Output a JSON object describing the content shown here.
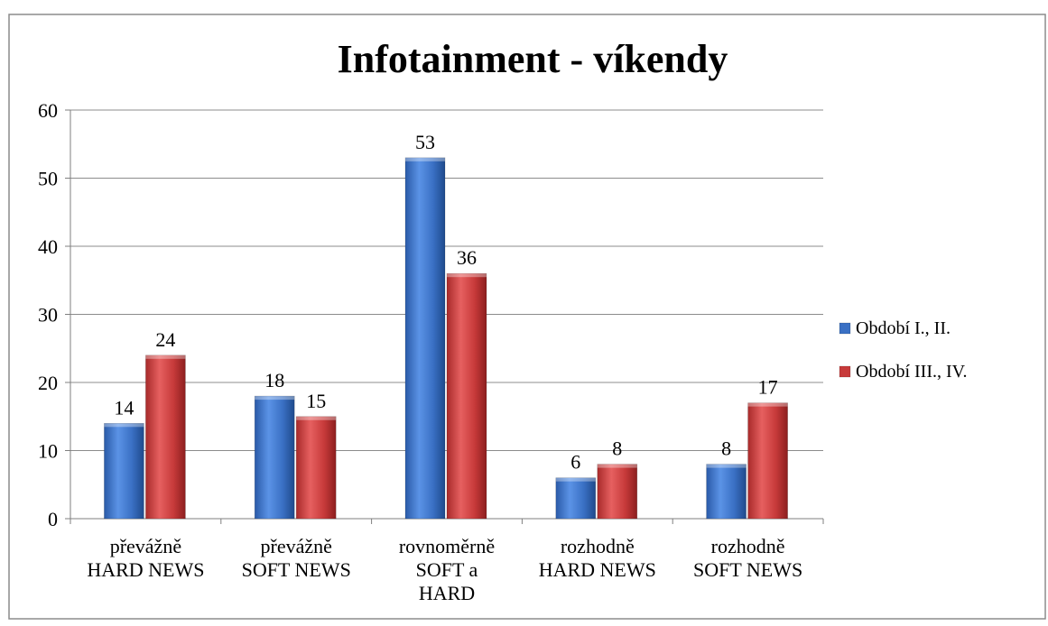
{
  "chart_data": {
    "type": "bar",
    "title": "Infotainment - víkendy",
    "xlabel": "",
    "ylabel": "",
    "ylim": [
      0,
      60
    ],
    "yticks": [
      0,
      10,
      20,
      30,
      40,
      50,
      60
    ],
    "grid": true,
    "legend_position": "right",
    "categories": [
      [
        "převážně",
        "HARD NEWS"
      ],
      [
        "převážně",
        "SOFT NEWS"
      ],
      [
        "rovnoměrně",
        "SOFT a",
        "HARD"
      ],
      [
        "rozhodně",
        "HARD NEWS"
      ],
      [
        "rozhodně",
        "SOFT NEWS"
      ]
    ],
    "series": [
      {
        "name": "Období I., II.",
        "color": "#3a70c4",
        "values": [
          14,
          18,
          53,
          6,
          8
        ]
      },
      {
        "name": "Období III., IV.",
        "color": "#c73a3a",
        "values": [
          24,
          15,
          36,
          8,
          17
        ]
      }
    ],
    "data_labels": true
  }
}
